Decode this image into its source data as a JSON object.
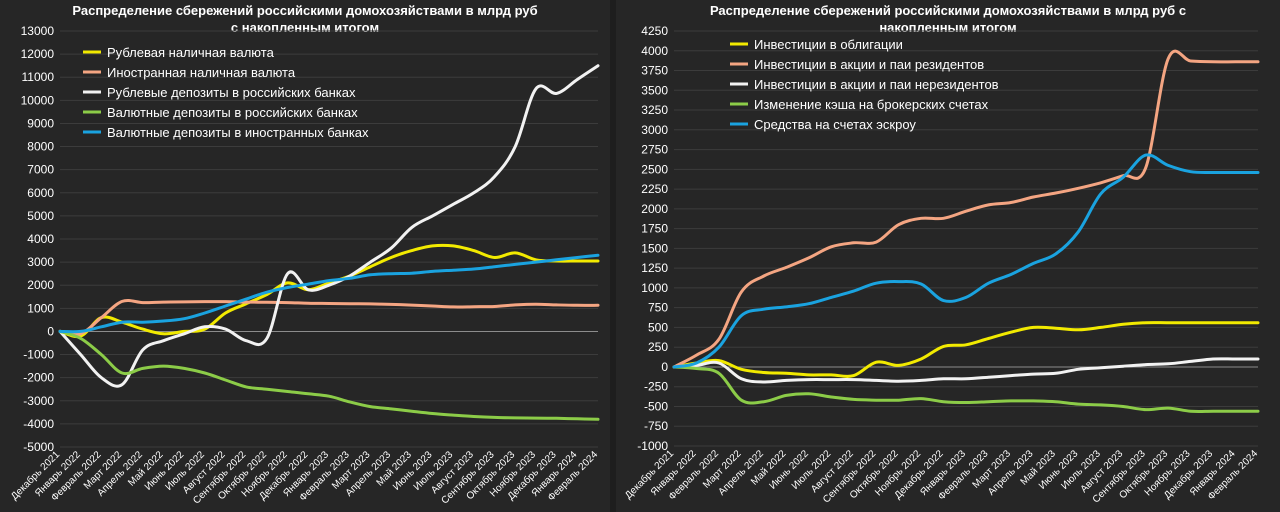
{
  "chart_data": [
    {
      "type": "line",
      "title": "Распределение сбережений российскими домохозяйствами в млрд руб",
      "subtitle": "с накопленным итогом",
      "categories": [
        "Декабрь 2021",
        "Январь 2022",
        "Февраль 2022",
        "Март 2022",
        "Апрель 2022",
        "Май 2022",
        "Июнь 2022",
        "Июль 2022",
        "Август 2022",
        "Сентябрь 2022",
        "Октябрь 2022",
        "Ноябрь 2022",
        "Декабрь 2022",
        "Январь 2023",
        "Февраль 2023",
        "Март 2023",
        "Апрель 2023",
        "Май 2023",
        "Июнь 2023",
        "Июль 2023",
        "Август 2023",
        "Сентябрь 2023",
        "Октябрь 2023",
        "Ноябрь 2023",
        "Декабрь 2023",
        "Январь 2024",
        "Февраль 2024"
      ],
      "ylim": [
        -5000,
        13000
      ],
      "yticks": [
        "-5000",
        "-4000",
        "-3000",
        "-2000",
        "-1000",
        "0",
        "1000",
        "2000",
        "3000",
        "4000",
        "5000",
        "6000",
        "7000",
        "8000",
        "9000",
        "10000",
        "11000",
        "12000",
        "13000"
      ],
      "grid": true,
      "legend_position": "top-left",
      "series": [
        {
          "name": "Рублевая наличная валюта",
          "color": "#f2ea00",
          "values": [
            0,
            -200,
            600,
            400,
            100,
            -100,
            0,
            100,
            800,
            1200,
            1600,
            2100,
            1800,
            2100,
            2400,
            2800,
            3200,
            3500,
            3700,
            3700,
            3500,
            3200,
            3400,
            3100,
            3050,
            3050,
            3050
          ]
        },
        {
          "name": "Иностранная наличная валюта",
          "color": "#f4a582",
          "values": [
            0,
            -100,
            600,
            1300,
            1250,
            1270,
            1280,
            1290,
            1290,
            1270,
            1260,
            1250,
            1220,
            1210,
            1200,
            1190,
            1170,
            1140,
            1100,
            1060,
            1070,
            1080,
            1150,
            1180,
            1150,
            1130,
            1130
          ]
        },
        {
          "name": "Рублевые депозиты в российских банках",
          "color": "#f2f2f2",
          "values": [
            0,
            -1000,
            -2000,
            -2300,
            -800,
            -400,
            -100,
            200,
            100,
            -400,
            -300,
            2500,
            1800,
            2000,
            2400,
            3000,
            3600,
            4500,
            5000,
            5500,
            6000,
            6700,
            8000,
            10500,
            10300,
            10900,
            11500
          ]
        },
        {
          "name": "Валютные депозиты в российских банках",
          "color": "#8ccc48",
          "values": [
            0,
            -300,
            -1000,
            -1800,
            -1600,
            -1500,
            -1600,
            -1800,
            -2100,
            -2400,
            -2500,
            -2600,
            -2700,
            -2800,
            -3050,
            -3250,
            -3350,
            -3450,
            -3550,
            -3620,
            -3680,
            -3720,
            -3740,
            -3750,
            -3760,
            -3780,
            -3800
          ]
        },
        {
          "name": "Валютные депозиты в иностранных банках",
          "color": "#1aa3e0",
          "values": [
            0,
            0,
            200,
            400,
            400,
            450,
            550,
            800,
            1100,
            1400,
            1700,
            1900,
            2050,
            2200,
            2300,
            2450,
            2500,
            2520,
            2600,
            2650,
            2700,
            2800,
            2900,
            3000,
            3100,
            3200,
            3300
          ]
        }
      ]
    },
    {
      "type": "line",
      "title": "Распределение сбережений российскими домохозяйствами в млрд руб с",
      "subtitle": "накопленным итогом",
      "categories": [
        "Декабрь 2021",
        "Январь 2022",
        "Февраль 2022",
        "Март 2022",
        "Апрель 2022",
        "Май 2022",
        "Июнь 2022",
        "Июль 2022",
        "Август 2022",
        "Сентябрь 2022",
        "Октябрь 2022",
        "Ноябрь 2022",
        "Декабрь 2022",
        "Январь 2023",
        "Февраль 2023",
        "Март 2023",
        "Апрель 2023",
        "Май 2023",
        "Июнь 2023",
        "Июль 2023",
        "Август 2023",
        "Сентябрь 2023",
        "Октябрь 2023",
        "Ноябрь 2023",
        "Декабрь 2023",
        "Январь 2024",
        "Февраль 2024"
      ],
      "ylim": [
        -1000,
        4250
      ],
      "yticks": [
        "-1000",
        "-750",
        "-500",
        "-250",
        "0",
        "250",
        "500",
        "750",
        "1000",
        "1250",
        "1500",
        "1750",
        "2000",
        "2250",
        "2500",
        "2750",
        "3000",
        "3250",
        "3500",
        "3750",
        "4000",
        "4250"
      ],
      "grid": true,
      "legend_position": "top-left",
      "series": [
        {
          "name": "Инвестиции в облигации",
          "color": "#f2ea00",
          "values": [
            0,
            50,
            80,
            -30,
            -70,
            -80,
            -100,
            -100,
            -110,
            60,
            20,
            100,
            260,
            280,
            360,
            440,
            500,
            490,
            470,
            500,
            540,
            560,
            560,
            560,
            560,
            560,
            560
          ]
        },
        {
          "name": "Инвестиции в акции и паи резидентов",
          "color": "#f4a582",
          "values": [
            0,
            150,
            350,
            950,
            1150,
            1260,
            1380,
            1520,
            1570,
            1580,
            1800,
            1880,
            1880,
            1970,
            2050,
            2080,
            2150,
            2200,
            2260,
            2330,
            2420,
            2520,
            3900,
            3870,
            3860,
            3860,
            3860
          ]
        },
        {
          "name": "Инвестиции в акции и паи нерезидентов",
          "color": "#f2f2f2",
          "values": [
            0,
            20,
            50,
            -150,
            -190,
            -170,
            -160,
            -160,
            -160,
            -170,
            -180,
            -170,
            -150,
            -150,
            -130,
            -110,
            -90,
            -80,
            -30,
            -10,
            10,
            30,
            40,
            70,
            100,
            100,
            100
          ]
        },
        {
          "name": "Изменение кэша на брокерских счетах",
          "color": "#8ccc48",
          "values": [
            0,
            -20,
            -80,
            -420,
            -440,
            -360,
            -340,
            -380,
            -410,
            -420,
            -420,
            -400,
            -440,
            -450,
            -440,
            -430,
            -430,
            -440,
            -470,
            -480,
            -500,
            -540,
            -520,
            -560,
            -560,
            -560,
            -560
          ]
        },
        {
          "name": "Средства на счетах эскроу",
          "color": "#1aa3e0",
          "values": [
            0,
            50,
            250,
            650,
            730,
            760,
            800,
            880,
            960,
            1060,
            1080,
            1050,
            840,
            880,
            1060,
            1170,
            1310,
            1430,
            1710,
            2190,
            2400,
            2680,
            2550,
            2470,
            2460,
            2460,
            2460
          ]
        }
      ]
    }
  ]
}
